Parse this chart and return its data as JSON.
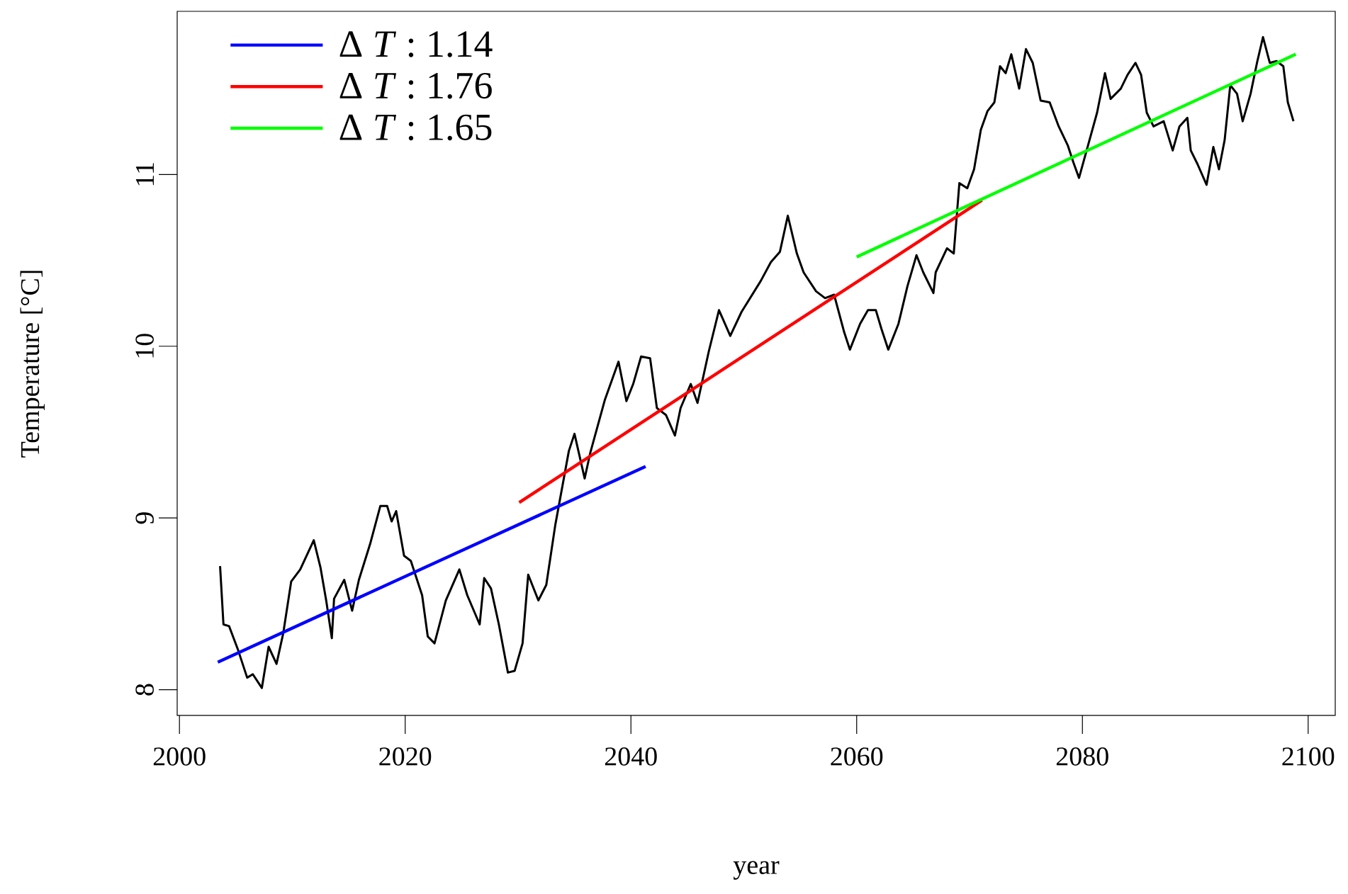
{
  "chart_data": {
    "type": "line",
    "xlabel": "year",
    "ylabel": "Temperature [°C]",
    "xlim": [
      1999.8,
      2102.4
    ],
    "ylim": [
      7.85,
      11.95
    ],
    "xticks": [
      2000,
      2020,
      2040,
      2060,
      2080,
      2100
    ],
    "yticks": [
      8,
      9,
      10,
      11
    ],
    "grid": false,
    "legend": "top left",
    "series": [
      {
        "color": "#000000",
        "x": [
          2003.6,
          2003.9,
          2004.4,
          2005.2,
          2006.0,
          2006.5,
          2007.3,
          2007.9,
          2008.6,
          2009.2,
          2009.9,
          2010.7,
          2011.9,
          2012.5,
          2013.0,
          2013.5,
          2013.7,
          2014.6,
          2015.3,
          2015.9,
          2016.9,
          2017.8,
          2018.4,
          2018.8,
          2019.2,
          2019.9,
          2020.5,
          2021.5,
          2022.0,
          2022.6,
          2023.6,
          2024.8,
          2025.5,
          2026.6,
          2027.0,
          2027.6,
          2028.3,
          2029.1,
          2029.7,
          2030.4,
          2030.9,
          2031.8,
          2032.5,
          2033.3,
          2034.5,
          2035.0,
          2035.9,
          2036.4,
          2037.7,
          2038.9,
          2039.6,
          2040.2,
          2040.9,
          2041.7,
          2042.3,
          2043.1,
          2043.9,
          2044.4,
          2045.3,
          2045.9,
          2046.9,
          2047.8,
          2048.8,
          2049.8,
          2051.5,
          2052.4,
          2053.2,
          2053.9,
          2054.7,
          2055.3,
          2056.4,
          2057.2,
          2058.0,
          2058.9,
          2059.4,
          2060.3,
          2061.0,
          2061.7,
          2062.2,
          2062.8,
          2063.7,
          2064.5,
          2065.3,
          2065.9,
          2066.8,
          2067.0,
          2068.0,
          2068.6,
          2069.1,
          2069.8,
          2070.4,
          2071.0,
          2071.6,
          2072.2,
          2072.7,
          2073.2,
          2073.7,
          2074.4,
          2075.0,
          2075.6,
          2076.3,
          2077.1,
          2077.9,
          2078.7,
          2079.2,
          2079.7,
          2080.5,
          2081.3,
          2082.0,
          2082.5,
          2083.4,
          2084.0,
          2084.7,
          2085.2,
          2085.7,
          2086.3,
          2087.2,
          2088.0,
          2088.6,
          2089.3,
          2089.6,
          2090.2,
          2091.0,
          2091.6,
          2092.1,
          2092.6,
          2093.1,
          2093.7,
          2094.2,
          2094.9,
          2095.5,
          2096.0,
          2096.6,
          2097.2,
          2097.8,
          2098.2,
          2098.7
        ],
        "values": [
          8.72,
          8.38,
          8.37,
          8.23,
          8.07,
          8.09,
          8.01,
          8.25,
          8.15,
          8.33,
          8.63,
          8.7,
          8.87,
          8.71,
          8.52,
          8.3,
          8.53,
          8.64,
          8.46,
          8.64,
          8.85,
          9.07,
          9.07,
          8.98,
          9.04,
          8.78,
          8.75,
          8.55,
          8.31,
          8.27,
          8.52,
          8.7,
          8.55,
          8.38,
          8.65,
          8.59,
          8.38,
          8.1,
          8.11,
          8.27,
          8.67,
          8.52,
          8.61,
          8.96,
          9.39,
          9.49,
          9.23,
          9.38,
          9.69,
          9.91,
          9.68,
          9.78,
          9.94,
          9.93,
          9.64,
          9.6,
          9.48,
          9.64,
          9.78,
          9.67,
          9.97,
          10.21,
          10.06,
          10.2,
          10.38,
          10.49,
          10.55,
          10.76,
          10.54,
          10.43,
          10.32,
          10.28,
          10.3,
          10.08,
          9.98,
          10.13,
          10.21,
          10.21,
          10.1,
          9.98,
          10.13,
          10.35,
          10.53,
          10.43,
          10.31,
          10.43,
          10.57,
          10.54,
          10.95,
          10.92,
          11.03,
          11.26,
          11.37,
          11.42,
          11.63,
          11.59,
          11.7,
          11.5,
          11.73,
          11.65,
          11.43,
          11.42,
          11.28,
          11.17,
          11.07,
          10.98,
          11.17,
          11.36,
          11.59,
          11.44,
          11.5,
          11.58,
          11.65,
          11.58,
          11.36,
          11.28,
          11.31,
          11.14,
          11.28,
          11.33,
          11.14,
          11.06,
          10.94,
          11.16,
          11.03,
          11.2,
          11.52,
          11.47,
          11.31,
          11.47,
          11.66,
          11.8,
          11.65,
          11.66,
          11.63,
          11.42,
          11.31
        ]
      },
      {
        "name": "Δ *T* : 1.14",
        "color": "#0000ff",
        "x": [
          2003.4,
          2041.3
        ],
        "values": [
          8.16,
          9.3
        ]
      },
      {
        "name": "Δ *T* : 1.76",
        "color": "#ff0000",
        "x": [
          2030.1,
          2071.1
        ],
        "values": [
          9.09,
          10.85
        ]
      },
      {
        "name": "Δ *T* : 1.65",
        "color": "#00ff00",
        "x": [
          2060.0,
          2098.9
        ],
        "values": [
          10.52,
          11.7
        ]
      }
    ]
  }
}
